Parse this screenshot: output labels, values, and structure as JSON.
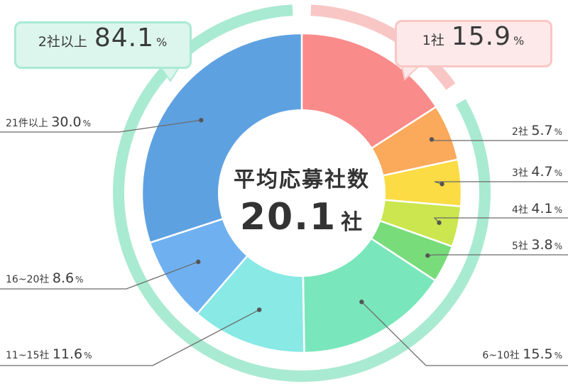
{
  "chart_data": {
    "type": "pie",
    "categories": [
      "1社",
      "2社",
      "3社",
      "4社",
      "5社",
      "6~10社",
      "11~15社",
      "16~20社",
      "21件以上"
    ],
    "values": [
      15.9,
      5.7,
      4.7,
      4.1,
      3.8,
      15.5,
      11.6,
      8.6,
      30.0
    ],
    "value_labels": [
      "15.9",
      "5.7",
      "4.7",
      "4.1",
      "3.8",
      "15.5",
      "11.6",
      "8.6",
      "30.0"
    ],
    "unit": "%",
    "colors": [
      "#f98b8a",
      "#fba95b",
      "#fbdc44",
      "#cbe64e",
      "#78dc7b",
      "#7ae6bb",
      "#88e9e5",
      "#6fb1f0",
      "#5ea1e1"
    ],
    "groups": [
      {
        "label": "1社",
        "value": "15.9",
        "unit": "%",
        "from": 0,
        "to": 0,
        "color": "#f8c7c5"
      },
      {
        "label": "2社以上",
        "value": "84.1",
        "unit": "%",
        "from": 1,
        "to": 8,
        "color": "#a9ead2"
      }
    ],
    "center_title": "平均応募社数",
    "center_value": "20.1",
    "center_unit": "社"
  }
}
